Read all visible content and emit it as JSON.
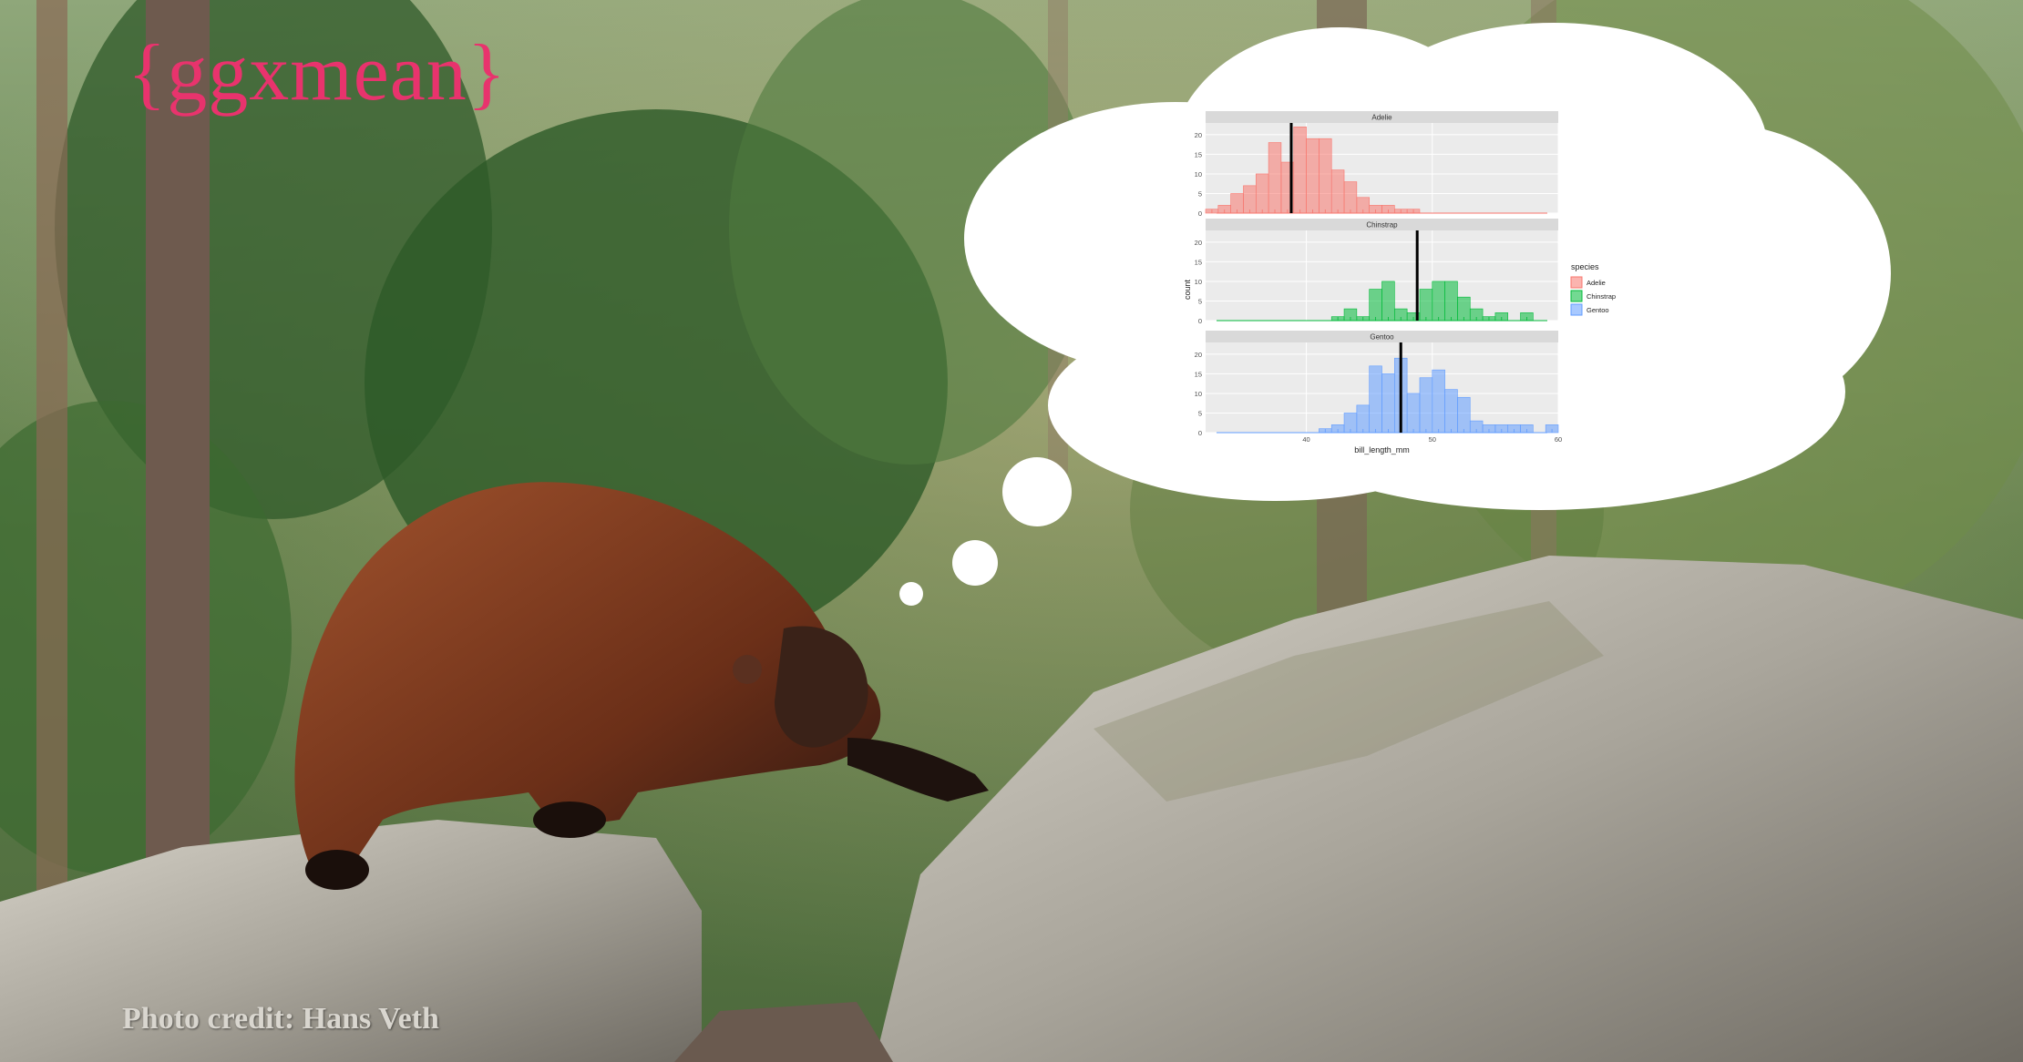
{
  "title": "{ggxmean}",
  "photo_credit": "Photo credit: Hans Veth",
  "colors": {
    "title": "#e8336d",
    "adelie": "#f8766d",
    "chinstrap": "#00ba38",
    "gentoo": "#619cff"
  },
  "chart_data": {
    "type": "bar",
    "xlabel": "bill_length_mm",
    "ylabel": "count",
    "xlim": [
      32,
      60
    ],
    "ylim": [
      0,
      23
    ],
    "x_ticks": [
      40,
      50,
      60
    ],
    "y_ticks": [
      0,
      5,
      10,
      15,
      20
    ],
    "bin_width": 1,
    "bin_start": 32,
    "legend": {
      "title": "species",
      "position": "right",
      "entries": [
        "Adelie",
        "Chinstrap",
        "Gentoo"
      ]
    },
    "facets": [
      {
        "label": "Adelie",
        "color": "#f8766d",
        "mean": 38.8,
        "counts": [
          1,
          2,
          5,
          7,
          10,
          18,
          13,
          22,
          19,
          19,
          11,
          8,
          4,
          2,
          2,
          1,
          1,
          0,
          0,
          0,
          0,
          0,
          0,
          0,
          0,
          0,
          0,
          0
        ]
      },
      {
        "label": "Chinstrap",
        "color": "#00ba38",
        "mean": 48.8,
        "counts": [
          0,
          0,
          0,
          0,
          0,
          0,
          0,
          0,
          0,
          0,
          1,
          3,
          1,
          8,
          10,
          3,
          2,
          8,
          10,
          10,
          6,
          3,
          1,
          2,
          0,
          2,
          0,
          0
        ]
      },
      {
        "label": "Gentoo",
        "color": "#619cff",
        "mean": 47.5,
        "counts": [
          0,
          0,
          0,
          0,
          0,
          0,
          0,
          0,
          0,
          1,
          2,
          5,
          7,
          17,
          15,
          19,
          10,
          14,
          16,
          11,
          9,
          3,
          2,
          2,
          2,
          2,
          0,
          2
        ]
      }
    ]
  }
}
